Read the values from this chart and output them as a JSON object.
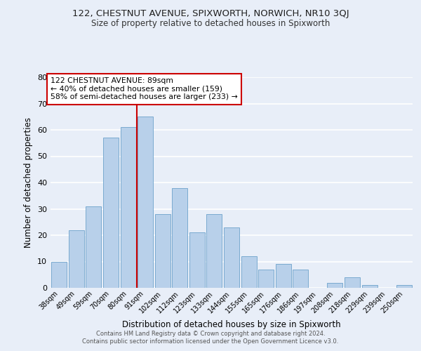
{
  "title1": "122, CHESTNUT AVENUE, SPIXWORTH, NORWICH, NR10 3QJ",
  "title2": "Size of property relative to detached houses in Spixworth",
  "xlabel": "Distribution of detached houses by size in Spixworth",
  "ylabel": "Number of detached properties",
  "categories": [
    "38sqm",
    "49sqm",
    "59sqm",
    "70sqm",
    "80sqm",
    "91sqm",
    "102sqm",
    "112sqm",
    "123sqm",
    "133sqm",
    "144sqm",
    "155sqm",
    "165sqm",
    "176sqm",
    "186sqm",
    "197sqm",
    "208sqm",
    "218sqm",
    "229sqm",
    "239sqm",
    "250sqm"
  ],
  "values": [
    10,
    22,
    31,
    57,
    61,
    65,
    28,
    38,
    21,
    28,
    23,
    12,
    7,
    9,
    7,
    0,
    2,
    4,
    1,
    0,
    1
  ],
  "bar_color": "#b8d0ea",
  "bar_edge_color": "#7aaad0",
  "vline_x": 4.5,
  "vline_color": "#cc0000",
  "annotation_text": "122 CHESTNUT AVENUE: 89sqm\n← 40% of detached houses are smaller (159)\n58% of semi-detached houses are larger (233) →",
  "annotation_box_color": "white",
  "annotation_box_edge_color": "#cc0000",
  "ylim": [
    0,
    80
  ],
  "yticks": [
    0,
    10,
    20,
    30,
    40,
    50,
    60,
    70,
    80
  ],
  "background_color": "#e8eef8",
  "grid_color": "white",
  "footer1": "Contains HM Land Registry data © Crown copyright and database right 2024.",
  "footer2": "Contains public sector information licensed under the Open Government Licence v3.0."
}
